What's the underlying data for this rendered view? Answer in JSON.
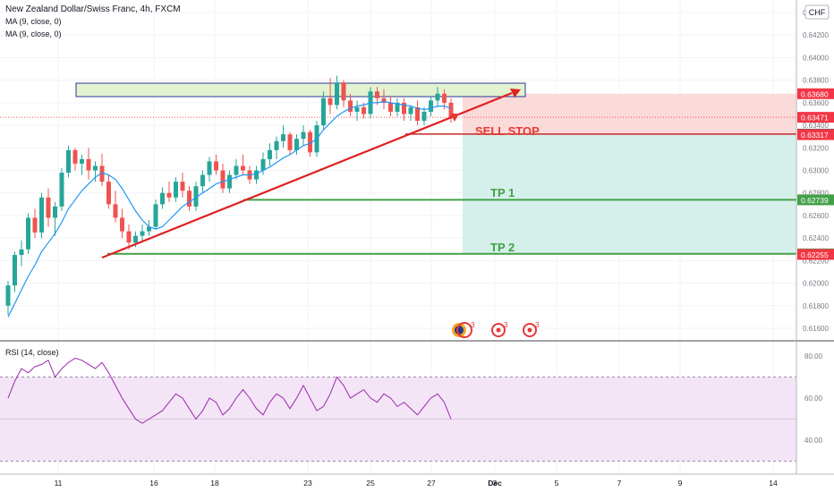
{
  "header": {
    "title": "New Zealand Dollar/Swiss Franc, 4h, FXCM",
    "ma1": "MA (9, close, 0)",
    "ma2": "MA (9, close, 0)",
    "currency_badge": "CHF"
  },
  "annotations": {
    "sell_stop": "SELL STOP",
    "tp1": "TP 1",
    "tp2": "TP 2"
  },
  "price_scale": {
    "ticks": [
      "0.64400",
      "0.64200",
      "0.64000",
      "0.63800",
      "0.63600",
      "0.63400",
      "0.63200",
      "0.63000",
      "0.62800",
      "0.62600",
      "0.62400",
      "0.62200",
      "0.62000",
      "0.61800",
      "0.61600"
    ],
    "labels": [
      {
        "text": "0.63680",
        "value": 0.6368,
        "color": "#f23645"
      },
      {
        "text": "0.63471",
        "value": 0.63471,
        "color": "#f23645"
      },
      {
        "text": "0.63322",
        "value": 0.63322,
        "color": "#5d606b"
      },
      {
        "text": "0.63317",
        "value": 0.63317,
        "color": "#f23645"
      },
      {
        "text": "0.62739",
        "value": 0.62739,
        "color": "#43a047"
      },
      {
        "text": "0.62260",
        "value": 0.6226,
        "color": "#43a047"
      },
      {
        "text": "0.62255",
        "value": 0.62255,
        "color": "#f23645"
      }
    ]
  },
  "rsi": {
    "title": "RSI (14, close)",
    "ticks": [
      "80.00",
      "60.00",
      "40.00"
    ]
  },
  "time_axis": {
    "ticks": [
      "11",
      "16",
      "18",
      "23",
      "25",
      "27",
      "Dec",
      "3",
      "5",
      "7",
      "9",
      "14"
    ]
  },
  "colors": {
    "up": "#26a69a",
    "down": "#ef5350",
    "ma": "#2196f3",
    "trendline": "#e02020",
    "rsi_line": "#9c27b0",
    "rsi_band": "#f3e5f5",
    "target_zone": "#d5f0ea",
    "stop_zone": "#fbdada",
    "resistance_zone": "#e3f2d0",
    "tp_line": "#43a047"
  },
  "chart_data": {
    "type": "candlestick",
    "symbol": "NZDCHF",
    "timeframe": "4h",
    "ylim": [
      0.6148,
      0.6448
    ],
    "rsi_ylim": [
      25,
      85
    ],
    "key_levels": {
      "entry_sell_stop": 0.63322,
      "stop_loss": 0.6368,
      "take_profit_1": 0.62739,
      "take_profit_2": 0.6226,
      "last_price": 0.63471
    },
    "candles": [
      [
        0.618,
        0.6202,
        0.6172,
        0.6198
      ],
      [
        0.6198,
        0.6228,
        0.6192,
        0.6225
      ],
      [
        0.6225,
        0.6238,
        0.6215,
        0.623
      ],
      [
        0.623,
        0.6262,
        0.6226,
        0.6258
      ],
      [
        0.6258,
        0.6266,
        0.624,
        0.6245
      ],
      [
        0.6245,
        0.628,
        0.624,
        0.6276
      ],
      [
        0.6276,
        0.6284,
        0.625,
        0.6258
      ],
      [
        0.6258,
        0.6272,
        0.6242,
        0.6268
      ],
      [
        0.6268,
        0.6302,
        0.6264,
        0.6298
      ],
      [
        0.6298,
        0.6322,
        0.6294,
        0.6318
      ],
      [
        0.6318,
        0.632,
        0.63,
        0.6306
      ],
      [
        0.6306,
        0.6314,
        0.6296,
        0.631
      ],
      [
        0.631,
        0.632,
        0.6292,
        0.63
      ],
      [
        0.63,
        0.6308,
        0.629,
        0.6304
      ],
      [
        0.6304,
        0.6315,
        0.6286,
        0.629
      ],
      [
        0.629,
        0.6296,
        0.6266,
        0.627
      ],
      [
        0.627,
        0.6282,
        0.6254,
        0.6258
      ],
      [
        0.6258,
        0.6266,
        0.624,
        0.6246
      ],
      [
        0.6246,
        0.6252,
        0.623,
        0.6236
      ],
      [
        0.6236,
        0.6246,
        0.6232,
        0.6242
      ],
      [
        0.6242,
        0.6252,
        0.6236,
        0.6246
      ],
      [
        0.6246,
        0.6256,
        0.6242,
        0.625
      ],
      [
        0.625,
        0.6274,
        0.6248,
        0.627
      ],
      [
        0.627,
        0.6285,
        0.6266,
        0.628
      ],
      [
        0.628,
        0.629,
        0.6272,
        0.6276
      ],
      [
        0.6276,
        0.6294,
        0.6272,
        0.629
      ],
      [
        0.629,
        0.6298,
        0.6276,
        0.6282
      ],
      [
        0.6282,
        0.6286,
        0.6264,
        0.6268
      ],
      [
        0.6268,
        0.629,
        0.6264,
        0.6286
      ],
      [
        0.6286,
        0.63,
        0.628,
        0.6296
      ],
      [
        0.6296,
        0.6312,
        0.629,
        0.6308
      ],
      [
        0.6308,
        0.6314,
        0.6296,
        0.63
      ],
      [
        0.63,
        0.6306,
        0.628,
        0.6284
      ],
      [
        0.6284,
        0.63,
        0.628,
        0.6296
      ],
      [
        0.6296,
        0.631,
        0.6292,
        0.6304
      ],
      [
        0.6304,
        0.6314,
        0.6296,
        0.63
      ],
      [
        0.63,
        0.6304,
        0.6288,
        0.6292
      ],
      [
        0.6292,
        0.6304,
        0.6288,
        0.63
      ],
      [
        0.63,
        0.6316,
        0.6296,
        0.631
      ],
      [
        0.631,
        0.6324,
        0.6304,
        0.6318
      ],
      [
        0.6318,
        0.633,
        0.631,
        0.6326
      ],
      [
        0.6326,
        0.634,
        0.632,
        0.6332
      ],
      [
        0.6332,
        0.6334,
        0.6314,
        0.6318
      ],
      [
        0.6318,
        0.6332,
        0.6314,
        0.6328
      ],
      [
        0.6328,
        0.634,
        0.6322,
        0.6334
      ],
      [
        0.6334,
        0.6336,
        0.6312,
        0.6316
      ],
      [
        0.6316,
        0.6344,
        0.6312,
        0.634
      ],
      [
        0.634,
        0.637,
        0.6336,
        0.6364
      ],
      [
        0.6364,
        0.6382,
        0.635,
        0.6358
      ],
      [
        0.6358,
        0.6384,
        0.6354,
        0.6378
      ],
      [
        0.6378,
        0.638,
        0.6356,
        0.6362
      ],
      [
        0.6362,
        0.6368,
        0.6348,
        0.6352
      ],
      [
        0.6352,
        0.6362,
        0.6344,
        0.6356
      ],
      [
        0.6356,
        0.636,
        0.6346,
        0.635
      ],
      [
        0.635,
        0.6374,
        0.6346,
        0.637
      ],
      [
        0.637,
        0.6374,
        0.6358,
        0.6364
      ],
      [
        0.6364,
        0.6372,
        0.6354,
        0.636
      ],
      [
        0.636,
        0.6366,
        0.6348,
        0.6352
      ],
      [
        0.6352,
        0.6364,
        0.6348,
        0.636
      ],
      [
        0.636,
        0.6364,
        0.6344,
        0.635
      ],
      [
        0.635,
        0.6358,
        0.6344,
        0.6356
      ],
      [
        0.6356,
        0.6362,
        0.634,
        0.6344
      ],
      [
        0.6344,
        0.6356,
        0.634,
        0.6352
      ],
      [
        0.6352,
        0.6366,
        0.6348,
        0.6362
      ],
      [
        0.6362,
        0.6374,
        0.6356,
        0.6368
      ],
      [
        0.6368,
        0.6372,
        0.6354,
        0.636
      ],
      [
        0.636,
        0.6364,
        0.6342,
        0.6347
      ]
    ],
    "ma": [
      0.617,
      0.6182,
      0.6194,
      0.6206,
      0.6216,
      0.6228,
      0.6236,
      0.6244,
      0.6254,
      0.6266,
      0.6274,
      0.6282,
      0.6288,
      0.6294,
      0.6298,
      0.6296,
      0.6292,
      0.6284,
      0.6274,
      0.6264,
      0.6256,
      0.625,
      0.6248,
      0.625,
      0.6256,
      0.6262,
      0.6268,
      0.6272,
      0.6276,
      0.628,
      0.6284,
      0.6288,
      0.629,
      0.6292,
      0.6294,
      0.6296,
      0.6296,
      0.6297,
      0.63,
      0.6303,
      0.6307,
      0.6311,
      0.6314,
      0.6318,
      0.6322,
      0.6324,
      0.6328,
      0.6336,
      0.6342,
      0.6348,
      0.6352,
      0.6355,
      0.6357,
      0.6358,
      0.636,
      0.636,
      0.6361,
      0.636,
      0.6359,
      0.6358,
      0.6357,
      0.6355,
      0.6354,
      0.6355,
      0.6357,
      0.6357,
      0.6355
    ],
    "rsi": [
      60,
      68,
      74,
      72,
      75,
      76,
      78,
      70,
      74,
      77,
      79,
      78,
      76,
      74,
      77,
      72,
      66,
      60,
      55,
      50,
      48,
      50,
      52,
      54,
      58,
      62,
      60,
      55,
      50,
      54,
      60,
      58,
      52,
      55,
      60,
      64,
      60,
      55,
      52,
      58,
      62,
      60,
      55,
      60,
      66,
      60,
      54,
      56,
      62,
      70,
      66,
      60,
      62,
      64,
      60,
      58,
      62,
      60,
      56,
      58,
      55,
      52,
      56,
      60,
      62,
      58,
      50
    ]
  }
}
